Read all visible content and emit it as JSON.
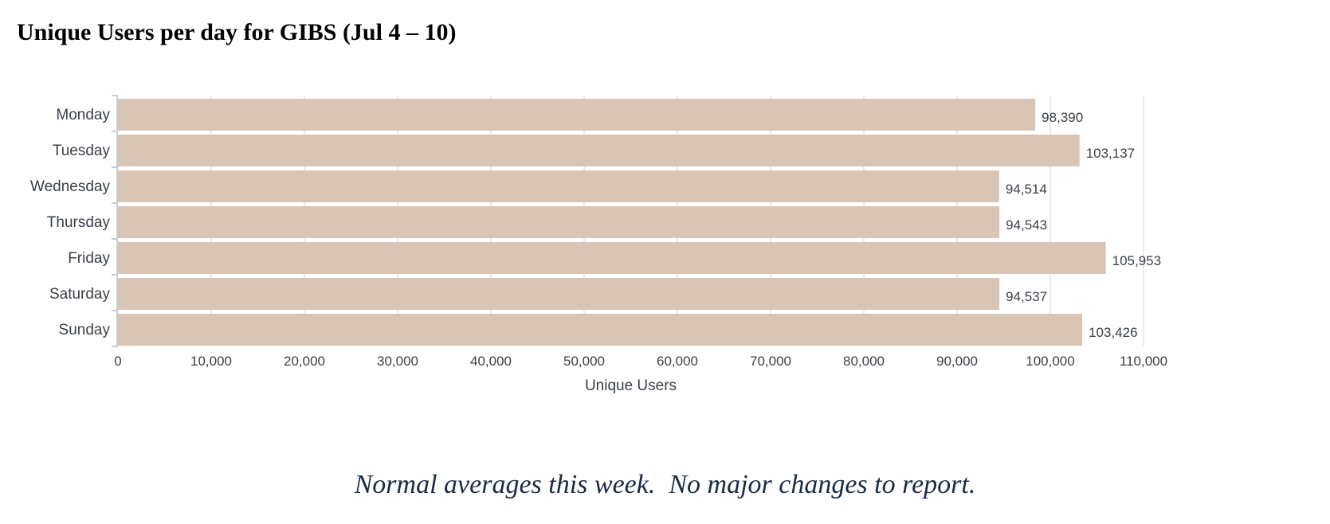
{
  "page": {
    "title": "Unique Users per day for GIBS (Jul 4 – 10)",
    "footnote": "Normal averages this week.  No major changes to report."
  },
  "chart_data": {
    "type": "bar",
    "orientation": "horizontal",
    "title": "Unique Users per day for GIBS (Jul 4 – 10)",
    "xlabel": "Unique Users",
    "ylabel": "",
    "categories": [
      "Monday",
      "Tuesday",
      "Wednesday",
      "Thursday",
      "Friday",
      "Saturday",
      "Sunday"
    ],
    "values": [
      98390,
      103137,
      94514,
      94543,
      105953,
      94537,
      103426
    ],
    "value_labels": [
      "98,390",
      "103,137",
      "94,514",
      "94,543",
      "105,953",
      "94,537",
      "103,426"
    ],
    "xlim": [
      0,
      110000
    ],
    "x_ticks": [
      0,
      10000,
      20000,
      30000,
      40000,
      50000,
      60000,
      70000,
      80000,
      90000,
      100000,
      110000
    ],
    "x_tick_labels": [
      "0",
      "10,000",
      "20,000",
      "30,000",
      "40,000",
      "50,000",
      "60,000",
      "70,000",
      "80,000",
      "90,000",
      "100,000",
      "110,000"
    ],
    "grid": true,
    "legend": "none",
    "bar_color": "#d8c5b6",
    "gridline_color": "#e3e3e3",
    "axis_color": "#c6cdd6",
    "text_color": "#3a3f4a"
  }
}
